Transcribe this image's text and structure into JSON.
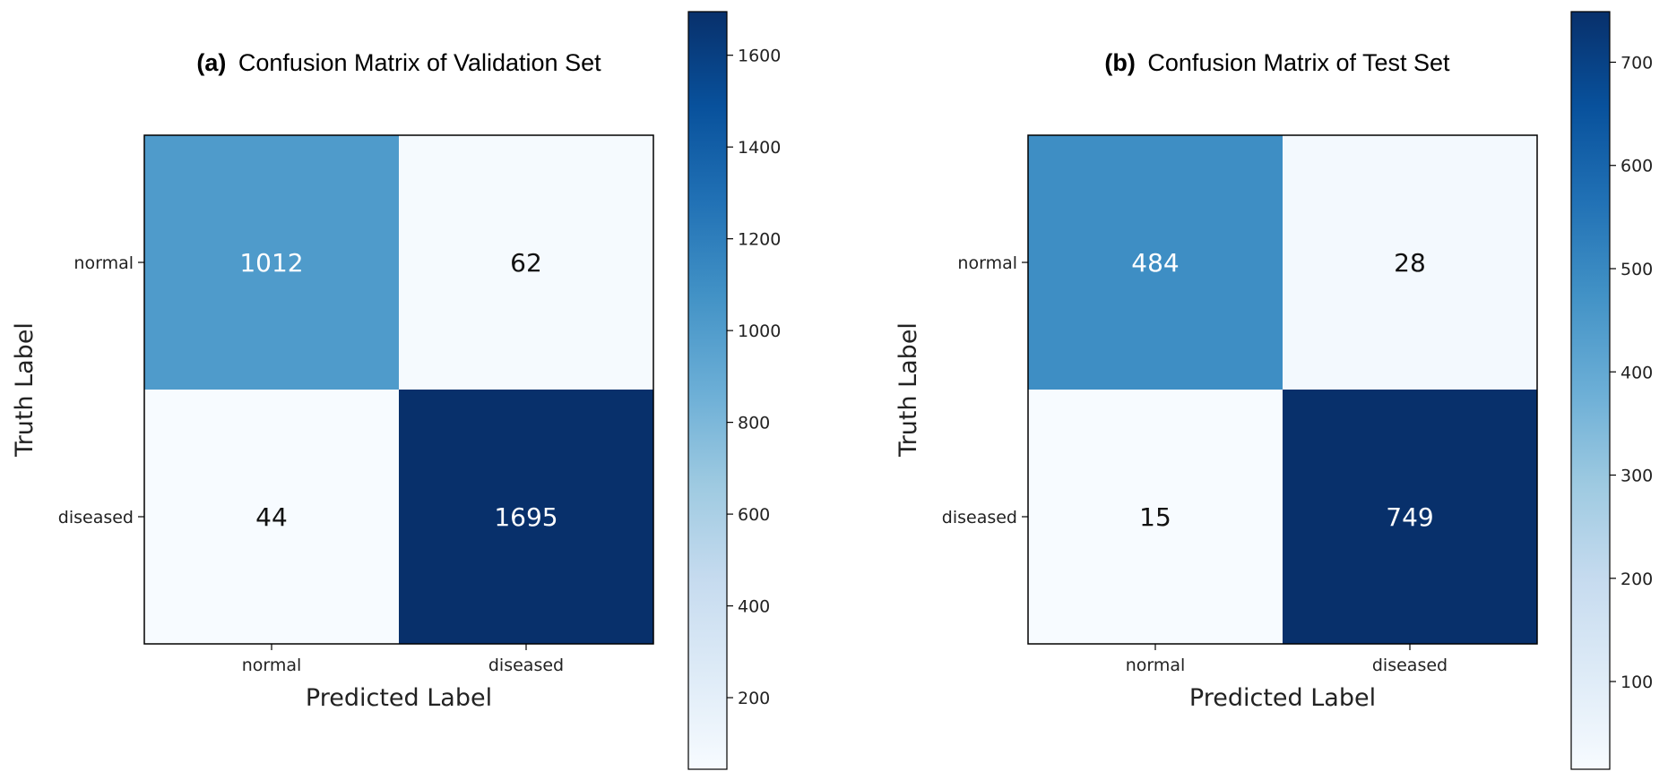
{
  "chart_data": [
    {
      "type": "heatmap",
      "title_prefix": "(a)",
      "title": "Confusion Matrix of Validation Set",
      "xlabel": "Predicted Label",
      "ylabel": "Truth Label",
      "x_categories": [
        "normal",
        "diseased"
      ],
      "y_categories": [
        "normal",
        "diseased"
      ],
      "values": [
        [
          1012,
          62
        ],
        [
          44,
          1695
        ]
      ],
      "colormap": "Blues",
      "colorbar_range": [
        44,
        1695
      ],
      "colorbar_ticks": [
        200,
        400,
        600,
        800,
        1000,
        1200,
        1400,
        1600
      ]
    },
    {
      "type": "heatmap",
      "title_prefix": "(b)",
      "title": "Confusion Matrix of Test Set",
      "xlabel": "Predicted Label",
      "ylabel": "Truth Label",
      "x_categories": [
        "normal",
        "diseased"
      ],
      "y_categories": [
        "normal",
        "diseased"
      ],
      "values": [
        [
          484,
          28
        ],
        [
          15,
          749
        ]
      ],
      "colormap": "Blues",
      "colorbar_range": [
        15,
        749
      ],
      "colorbar_ticks": [
        100,
        200,
        300,
        400,
        500,
        600,
        700
      ]
    }
  ]
}
